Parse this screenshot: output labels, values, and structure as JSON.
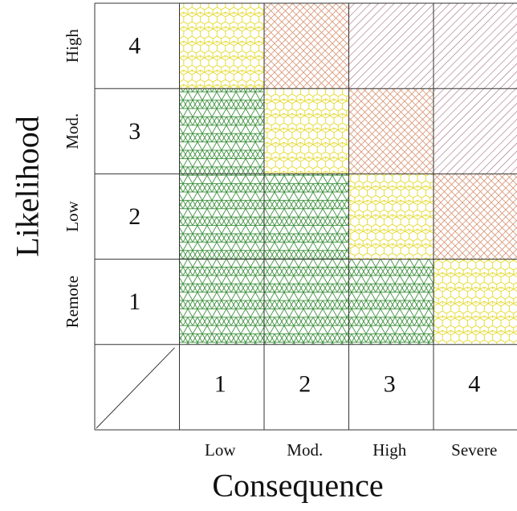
{
  "axes": {
    "y_title": "Likelihood",
    "x_title": "Consequence"
  },
  "likelihood_levels": [
    {
      "value": "1",
      "label": "Remote"
    },
    {
      "value": "2",
      "label": "Low"
    },
    {
      "value": "3",
      "label": "Mod."
    },
    {
      "value": "4",
      "label": "High"
    }
  ],
  "consequence_levels": [
    {
      "value": "1",
      "label": "Low"
    },
    {
      "value": "2",
      "label": "Mod."
    },
    {
      "value": "3",
      "label": "High"
    },
    {
      "value": "4",
      "label": "Severe"
    }
  ],
  "matrix": [
    [
      "low",
      "low",
      "low",
      "medium"
    ],
    [
      "low",
      "low",
      "medium",
      "high"
    ],
    [
      "low",
      "medium",
      "high",
      "very_high"
    ],
    [
      "medium",
      "high",
      "very_high",
      "very_high"
    ]
  ],
  "risk_colors": {
    "low": "#3a8f3a",
    "medium": "#e6dc3c",
    "high": "#d89a7c",
    "very_high": "#9b5e73"
  },
  "risk_patterns": {
    "low": "triangle-grid",
    "medium": "hexagon-mesh",
    "high": "cross-hatch",
    "very_high": "diagonal-hatch"
  }
}
